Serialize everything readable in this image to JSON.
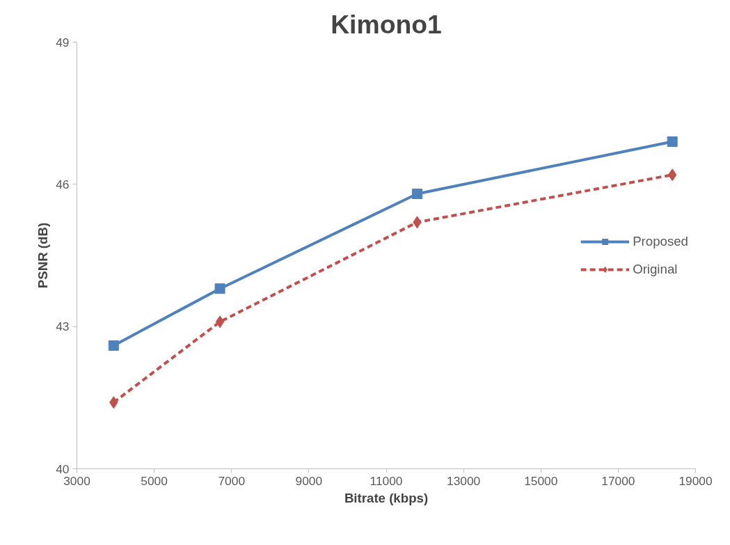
{
  "chart_data": {
    "type": "line",
    "title": "Kimono1",
    "xlabel": "Bitrate (kbps)",
    "ylabel": "PSNR (dB)",
    "xlim": [
      3000,
      19000
    ],
    "xticks": [
      3000,
      5000,
      7000,
      9000,
      11000,
      13000,
      15000,
      17000,
      19000
    ],
    "ylim": [
      40,
      49
    ],
    "yticks": [
      40,
      43,
      46,
      49
    ],
    "grid": false,
    "legend": "right",
    "series": [
      {
        "name": "Proposed",
        "color": "#4f81bd",
        "marker": "square",
        "line_style": "solid",
        "x": [
          3950,
          6700,
          11800,
          18400
        ],
        "values": [
          42.6,
          43.8,
          45.8,
          46.9
        ]
      },
      {
        "name": "Original",
        "color": "#c0504d",
        "marker": "diamond",
        "line_style": "dashed",
        "x": [
          3950,
          6700,
          11800,
          18400
        ],
        "values": [
          41.4,
          43.1,
          45.2,
          46.2
        ]
      }
    ]
  }
}
